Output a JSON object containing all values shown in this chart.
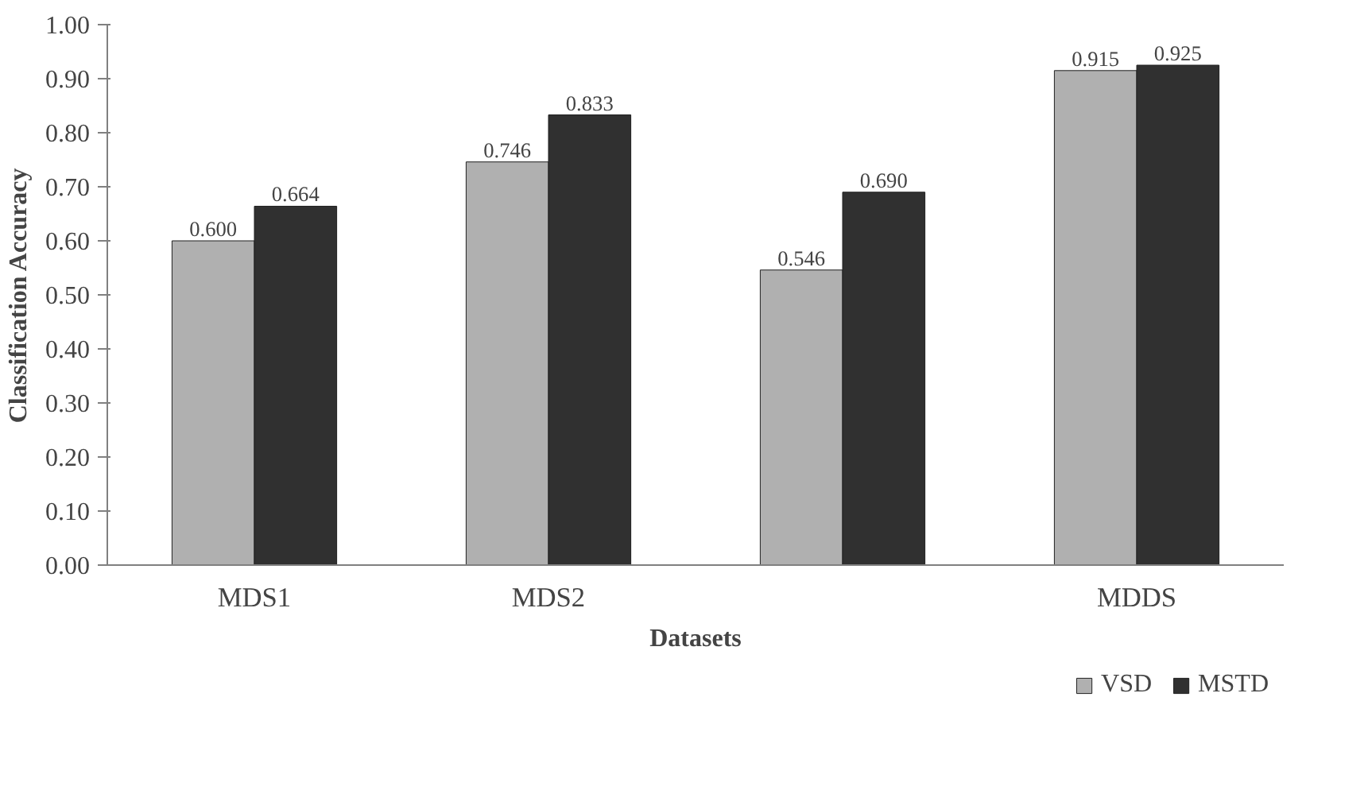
{
  "chart_data": {
    "type": "bar",
    "xlabel": "Datasets",
    "ylabel": "Classification Accuracy",
    "categories": [
      "MDS1",
      "MDS2",
      null,
      "MDDS"
    ],
    "series": [
      {
        "name": "VSD",
        "color": "#b0b0b0",
        "values": [
          0.6,
          0.746,
          0.546,
          0.915
        ],
        "value_labels": [
          "0.600",
          "0.746",
          "0.546",
          "0.915"
        ]
      },
      {
        "name": "MSTD",
        "color": "#303030",
        "values": [
          0.664,
          0.833,
          0.69,
          0.925
        ],
        "value_labels": [
          "0.664",
          "0.833",
          "0.690",
          "0.925"
        ]
      }
    ],
    "ylim": [
      0,
      1
    ],
    "yticks": [
      {
        "value": 0,
        "label": "0.00"
      },
      {
        "value": 0.1,
        "label": "0.10"
      },
      {
        "value": 0.2,
        "label": "0.20"
      },
      {
        "value": 0.3,
        "label": "0.30"
      },
      {
        "value": 0.4,
        "label": "0.40"
      },
      {
        "value": 0.5,
        "label": "0.50"
      },
      {
        "value": 0.6,
        "label": "0.60"
      },
      {
        "value": 0.7,
        "label": "0.70"
      },
      {
        "value": 0.8,
        "label": "0.80"
      },
      {
        "value": 0.9,
        "label": "0.90"
      },
      {
        "value": 1,
        "label": "1.00"
      }
    ],
    "grid": false,
    "legend": "bottom right"
  }
}
